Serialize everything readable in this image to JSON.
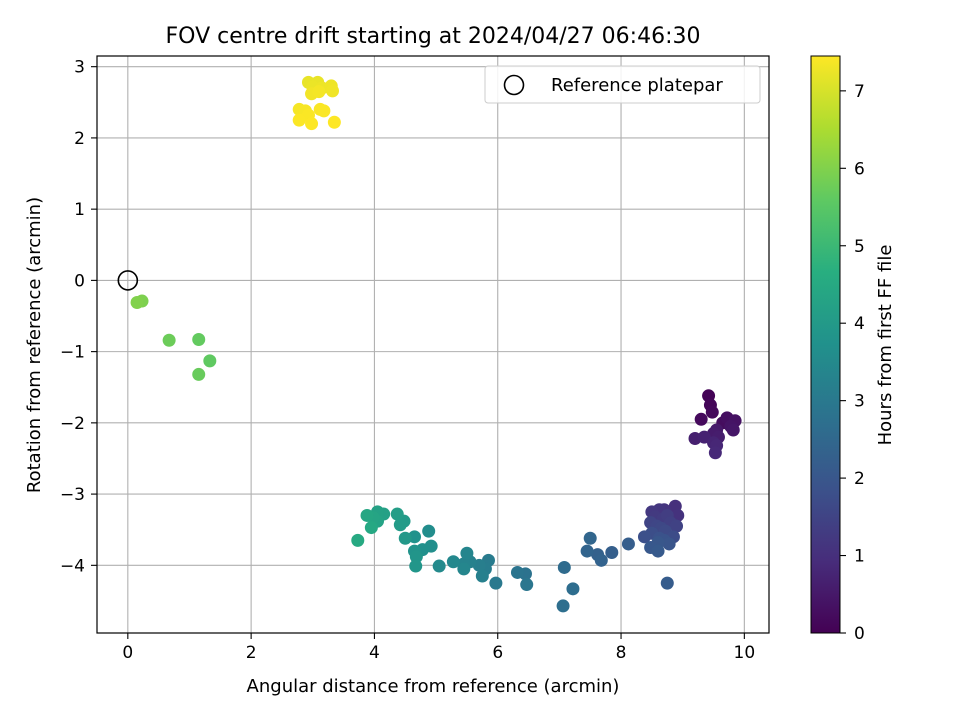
{
  "chart_data": {
    "type": "scatter",
    "title": "FOV centre drift starting at 2024/04/27 06:46:30",
    "xlabel": "Angular distance from reference (arcmin)",
    "ylabel": "Rotation from reference (arcmin)",
    "xlim": [
      -0.5,
      10.4
    ],
    "ylim": [
      -4.95,
      3.15
    ],
    "xticks": [
      0,
      2,
      4,
      6,
      8,
      10
    ],
    "yticks": [
      -4,
      -3,
      -2,
      -1,
      0,
      1,
      2,
      3
    ],
    "grid": true,
    "legend": {
      "placement": "top-right",
      "entries": [
        "Reference platepar"
      ]
    },
    "colorbar": {
      "label": "Hours from first FF file",
      "range": [
        0,
        7.45
      ],
      "ticks": [
        0,
        1,
        2,
        3,
        4,
        5,
        6,
        7
      ],
      "colormap": "viridis"
    },
    "reference_point": {
      "x": 0,
      "y": 0
    },
    "points": [
      {
        "x": 9.42,
        "y": -1.62,
        "h": 0.05
      },
      {
        "x": 9.45,
        "y": -1.75,
        "h": 0.1
      },
      {
        "x": 9.48,
        "y": -1.85,
        "h": 0.15
      },
      {
        "x": 9.3,
        "y": -1.95,
        "h": 0.2
      },
      {
        "x": 9.65,
        "y": -2.0,
        "h": 0.25
      },
      {
        "x": 9.72,
        "y": -1.93,
        "h": 0.3
      },
      {
        "x": 9.85,
        "y": -1.97,
        "h": 0.35
      },
      {
        "x": 9.78,
        "y": -2.05,
        "h": 0.4
      },
      {
        "x": 9.82,
        "y": -2.1,
        "h": 0.45
      },
      {
        "x": 9.55,
        "y": -2.1,
        "h": 0.5
      },
      {
        "x": 9.5,
        "y": -2.15,
        "h": 0.55
      },
      {
        "x": 9.58,
        "y": -2.2,
        "h": 0.6
      },
      {
        "x": 9.2,
        "y": -2.22,
        "h": 0.65
      },
      {
        "x": 9.35,
        "y": -2.2,
        "h": 0.7
      },
      {
        "x": 9.5,
        "y": -2.28,
        "h": 0.75
      },
      {
        "x": 9.55,
        "y": -2.32,
        "h": 0.8
      },
      {
        "x": 9.53,
        "y": -2.42,
        "h": 0.85
      },
      {
        "x": 8.88,
        "y": -3.17,
        "h": 1.0
      },
      {
        "x": 8.92,
        "y": -3.3,
        "h": 1.05
      },
      {
        "x": 8.7,
        "y": -3.22,
        "h": 1.1
      },
      {
        "x": 8.62,
        "y": -3.22,
        "h": 1.15
      },
      {
        "x": 8.5,
        "y": -3.25,
        "h": 1.2
      },
      {
        "x": 8.55,
        "y": -3.32,
        "h": 1.25
      },
      {
        "x": 8.68,
        "y": -3.35,
        "h": 1.3
      },
      {
        "x": 8.75,
        "y": -3.3,
        "h": 1.35
      },
      {
        "x": 8.8,
        "y": -3.4,
        "h": 1.4
      },
      {
        "x": 8.9,
        "y": -3.45,
        "h": 1.45
      },
      {
        "x": 8.48,
        "y": -3.4,
        "h": 1.5
      },
      {
        "x": 8.58,
        "y": -3.45,
        "h": 1.55
      },
      {
        "x": 8.65,
        "y": -3.48,
        "h": 1.6
      },
      {
        "x": 8.72,
        "y": -3.52,
        "h": 1.65
      },
      {
        "x": 8.85,
        "y": -3.6,
        "h": 1.7
      },
      {
        "x": 8.5,
        "y": -3.55,
        "h": 1.75
      },
      {
        "x": 8.38,
        "y": -3.6,
        "h": 1.8
      },
      {
        "x": 8.62,
        "y": -3.62,
        "h": 1.85
      },
      {
        "x": 8.7,
        "y": -3.65,
        "h": 1.9
      },
      {
        "x": 8.78,
        "y": -3.7,
        "h": 1.95
      },
      {
        "x": 8.6,
        "y": -3.68,
        "h": 2.0
      },
      {
        "x": 8.48,
        "y": -3.75,
        "h": 2.05
      },
      {
        "x": 8.6,
        "y": -3.8,
        "h": 2.1
      },
      {
        "x": 8.75,
        "y": -4.25,
        "h": 2.15
      },
      {
        "x": 8.12,
        "y": -3.7,
        "h": 2.2
      },
      {
        "x": 7.85,
        "y": -3.82,
        "h": 2.25
      },
      {
        "x": 7.62,
        "y": -3.85,
        "h": 2.3
      },
      {
        "x": 7.68,
        "y": -3.93,
        "h": 2.35
      },
      {
        "x": 7.45,
        "y": -3.8,
        "h": 2.4
      },
      {
        "x": 7.5,
        "y": -3.62,
        "h": 2.45
      },
      {
        "x": 7.08,
        "y": -4.03,
        "h": 2.6
      },
      {
        "x": 7.22,
        "y": -4.33,
        "h": 2.65
      },
      {
        "x": 7.06,
        "y": -4.57,
        "h": 2.7
      },
      {
        "x": 6.45,
        "y": -4.12,
        "h": 2.8
      },
      {
        "x": 6.32,
        "y": -4.1,
        "h": 2.85
      },
      {
        "x": 6.47,
        "y": -4.27,
        "h": 2.9
      },
      {
        "x": 5.97,
        "y": -4.25,
        "h": 3.0
      },
      {
        "x": 5.85,
        "y": -3.93,
        "h": 3.05
      },
      {
        "x": 5.8,
        "y": -4.05,
        "h": 3.1
      },
      {
        "x": 5.7,
        "y": -4.0,
        "h": 3.15
      },
      {
        "x": 5.75,
        "y": -4.15,
        "h": 3.2
      },
      {
        "x": 5.55,
        "y": -3.95,
        "h": 3.25
      },
      {
        "x": 5.45,
        "y": -3.98,
        "h": 3.3
      },
      {
        "x": 5.5,
        "y": -3.83,
        "h": 3.35
      },
      {
        "x": 5.45,
        "y": -4.05,
        "h": 3.4
      },
      {
        "x": 5.28,
        "y": -3.95,
        "h": 3.45
      },
      {
        "x": 5.05,
        "y": -4.01,
        "h": 3.5
      },
      {
        "x": 4.88,
        "y": -3.52,
        "h": 3.6
      },
      {
        "x": 4.92,
        "y": -3.73,
        "h": 3.65
      },
      {
        "x": 4.78,
        "y": -3.78,
        "h": 3.7
      },
      {
        "x": 4.65,
        "y": -3.6,
        "h": 3.75
      },
      {
        "x": 4.65,
        "y": -3.8,
        "h": 3.8
      },
      {
        "x": 4.68,
        "y": -3.88,
        "h": 3.85
      },
      {
        "x": 4.67,
        "y": -4.01,
        "h": 3.9
      },
      {
        "x": 4.5,
        "y": -3.62,
        "h": 3.95
      },
      {
        "x": 4.48,
        "y": -3.38,
        "h": 4.0
      },
      {
        "x": 4.42,
        "y": -3.43,
        "h": 4.05
      },
      {
        "x": 4.37,
        "y": -3.28,
        "h": 4.1
      },
      {
        "x": 4.15,
        "y": -3.28,
        "h": 4.2
      },
      {
        "x": 4.05,
        "y": -3.25,
        "h": 4.25
      },
      {
        "x": 4.05,
        "y": -3.38,
        "h": 4.3
      },
      {
        "x": 3.98,
        "y": -3.33,
        "h": 4.35
      },
      {
        "x": 3.88,
        "y": -3.3,
        "h": 4.4
      },
      {
        "x": 3.95,
        "y": -3.47,
        "h": 4.45
      },
      {
        "x": 3.73,
        "y": -3.65,
        "h": 4.5
      },
      {
        "x": 1.33,
        "y": -1.13,
        "h": 5.6
      },
      {
        "x": 1.15,
        "y": -0.83,
        "h": 5.65
      },
      {
        "x": 1.15,
        "y": -1.32,
        "h": 5.7
      },
      {
        "x": 0.67,
        "y": -0.84,
        "h": 5.75
      },
      {
        "x": 0.23,
        "y": -0.29,
        "h": 5.95
      },
      {
        "x": 0.15,
        "y": -0.31,
        "h": 6.0
      },
      {
        "x": 2.93,
        "y": 2.78,
        "h": 7.2
      },
      {
        "x": 3.08,
        "y": 2.78,
        "h": 7.22
      },
      {
        "x": 3.0,
        "y": 2.72,
        "h": 7.24
      },
      {
        "x": 3.15,
        "y": 2.7,
        "h": 7.26
      },
      {
        "x": 3.3,
        "y": 2.73,
        "h": 7.28
      },
      {
        "x": 3.32,
        "y": 2.66,
        "h": 7.3
      },
      {
        "x": 2.98,
        "y": 2.62,
        "h": 7.32
      },
      {
        "x": 3.1,
        "y": 2.65,
        "h": 7.34
      },
      {
        "x": 2.78,
        "y": 2.4,
        "h": 7.36
      },
      {
        "x": 2.88,
        "y": 2.38,
        "h": 7.38
      },
      {
        "x": 3.12,
        "y": 2.4,
        "h": 7.4
      },
      {
        "x": 3.18,
        "y": 2.38,
        "h": 7.41
      },
      {
        "x": 2.93,
        "y": 2.32,
        "h": 7.42
      },
      {
        "x": 2.78,
        "y": 2.25,
        "h": 7.43
      },
      {
        "x": 2.98,
        "y": 2.2,
        "h": 7.44
      },
      {
        "x": 3.35,
        "y": 2.22,
        "h": 7.45
      }
    ]
  }
}
